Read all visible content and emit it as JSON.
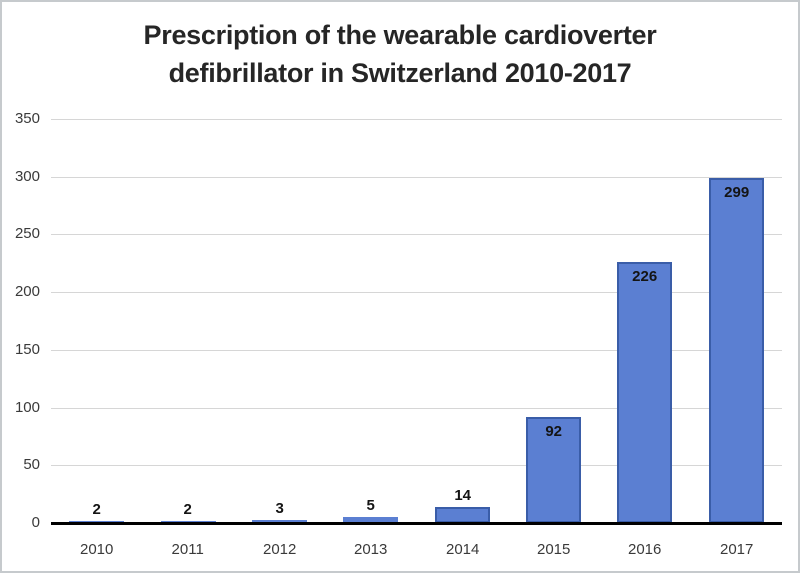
{
  "chart_data": {
    "type": "bar",
    "title": "Prescription of the wearable cardioverter defibrillator in Switzerland 2010-2017",
    "title_lines": [
      "Prescription of the wearable cardioverter",
      "defibrillator in Switzerland 2010-2017"
    ],
    "categories": [
      "2010",
      "2011",
      "2012",
      "2013",
      "2014",
      "2015",
      "2016",
      "2017"
    ],
    "values": [
      2,
      2,
      3,
      5,
      14,
      92,
      226,
      299
    ],
    "data_labels": [
      "2",
      "2",
      "3",
      "5",
      "14",
      "92",
      "226",
      "299"
    ],
    "xlabel": "",
    "ylabel": "",
    "ylim": [
      0,
      350
    ],
    "yticks": [
      "0",
      "50",
      "100",
      "150",
      "200",
      "250",
      "300",
      "350"
    ],
    "grid": "horizontal",
    "legend_position": "none",
    "colors": {
      "bar_fill": "#5b7fd2",
      "bar_border": "#3a5da8",
      "gridline": "#d6d6d6",
      "axis_line": "#000000",
      "tick_label": "#3a3a3a",
      "data_label": "#141414",
      "title": "#262626",
      "frame_border": "#c6cacd",
      "background": "#ffffff"
    }
  }
}
